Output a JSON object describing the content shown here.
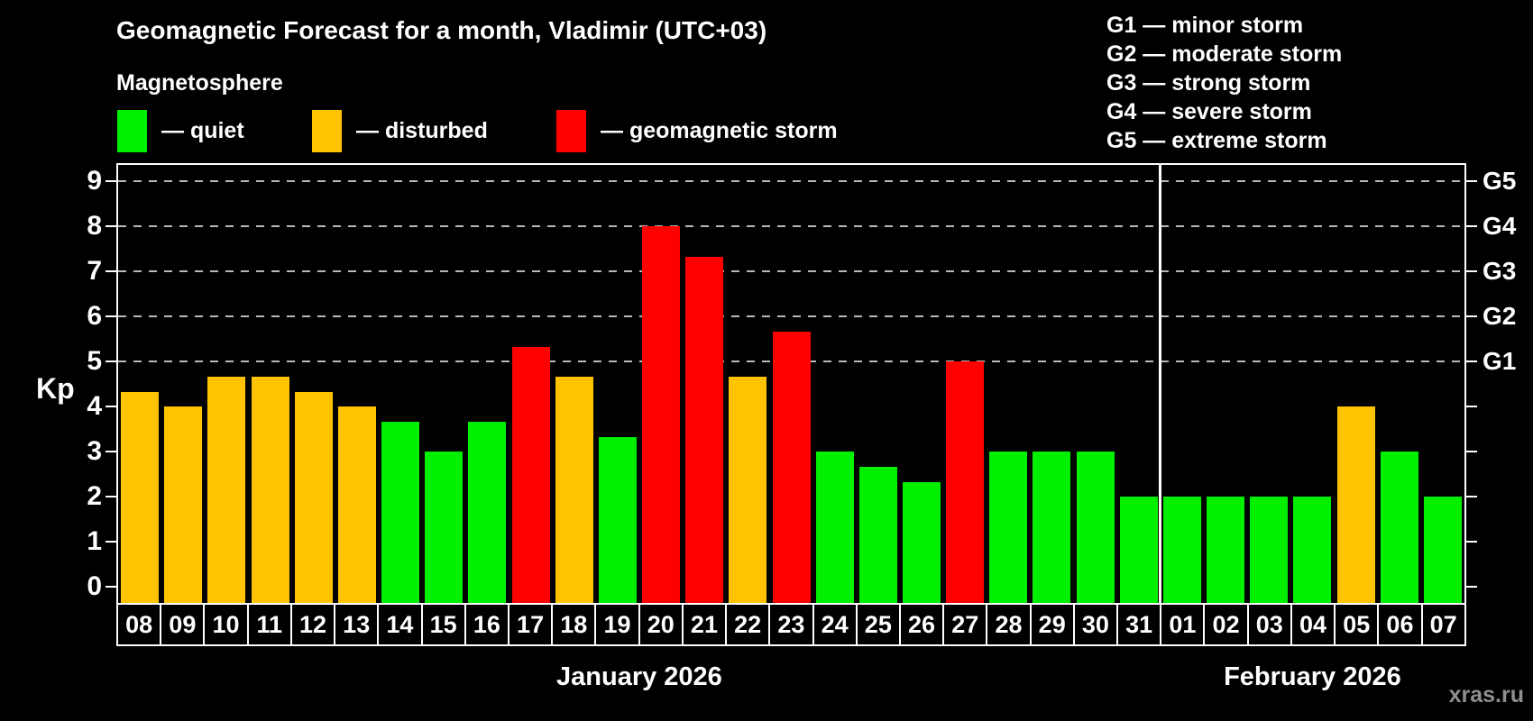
{
  "title": "Geomagnetic Forecast for a month, Vladimir (UTC+03)",
  "subtitle": "Magnetosphere",
  "legend": {
    "items": [
      {
        "key": "quiet",
        "label": "— quiet",
        "color": "#00f000"
      },
      {
        "key": "disturbed",
        "label": "— disturbed",
        "color": "#ffc300"
      },
      {
        "key": "storm",
        "label": "— geomagnetic storm",
        "color": "#ff0000"
      }
    ]
  },
  "g_legend": [
    "G1 — minor storm",
    "G2 — moderate storm",
    "G3 — strong storm",
    "G4 — severe storm",
    "G5 — extreme storm"
  ],
  "watermark": "xras.ru",
  "chart_data": {
    "type": "bar",
    "ylabel": "Kp",
    "ylim": [
      -0.36,
      9.36
    ],
    "yticks": [
      0,
      1,
      2,
      3,
      4,
      5,
      6,
      7,
      8,
      9
    ],
    "gridlines_at": [
      5,
      6,
      7,
      8,
      9
    ],
    "grid": true,
    "legend_position": "top",
    "right_axis_labels": [
      {
        "kp": 5,
        "label": "G1"
      },
      {
        "kp": 6,
        "label": "G2"
      },
      {
        "kp": 7,
        "label": "G3"
      },
      {
        "kp": 8,
        "label": "G4"
      },
      {
        "kp": 9,
        "label": "G5"
      }
    ],
    "months": [
      {
        "label": "January 2026",
        "days": [
          {
            "day": "08",
            "kp": 4.33,
            "status": "disturbed"
          },
          {
            "day": "09",
            "kp": 4.0,
            "status": "disturbed"
          },
          {
            "day": "10",
            "kp": 4.67,
            "status": "disturbed"
          },
          {
            "day": "11",
            "kp": 4.67,
            "status": "disturbed"
          },
          {
            "day": "12",
            "kp": 4.33,
            "status": "disturbed"
          },
          {
            "day": "13",
            "kp": 4.0,
            "status": "disturbed"
          },
          {
            "day": "14",
            "kp": 3.67,
            "status": "quiet"
          },
          {
            "day": "15",
            "kp": 3.0,
            "status": "quiet"
          },
          {
            "day": "16",
            "kp": 3.67,
            "status": "quiet"
          },
          {
            "day": "17",
            "kp": 5.33,
            "status": "storm"
          },
          {
            "day": "18",
            "kp": 4.67,
            "status": "disturbed"
          },
          {
            "day": "19",
            "kp": 3.33,
            "status": "quiet"
          },
          {
            "day": "20",
            "kp": 8.0,
            "status": "storm"
          },
          {
            "day": "21",
            "kp": 7.33,
            "status": "storm"
          },
          {
            "day": "22",
            "kp": 4.67,
            "status": "disturbed"
          },
          {
            "day": "23",
            "kp": 5.67,
            "status": "storm"
          },
          {
            "day": "24",
            "kp": 3.0,
            "status": "quiet"
          },
          {
            "day": "25",
            "kp": 2.67,
            "status": "quiet"
          },
          {
            "day": "26",
            "kp": 2.33,
            "status": "quiet"
          },
          {
            "day": "27",
            "kp": 5.0,
            "status": "storm"
          },
          {
            "day": "28",
            "kp": 3.0,
            "status": "quiet"
          },
          {
            "day": "29",
            "kp": 3.0,
            "status": "quiet"
          },
          {
            "day": "30",
            "kp": 3.0,
            "status": "quiet"
          },
          {
            "day": "31",
            "kp": 2.0,
            "status": "quiet"
          }
        ]
      },
      {
        "label": "February 2026",
        "days": [
          {
            "day": "01",
            "kp": 2.0,
            "status": "quiet"
          },
          {
            "day": "02",
            "kp": 2.0,
            "status": "quiet"
          },
          {
            "day": "03",
            "kp": 2.0,
            "status": "quiet"
          },
          {
            "day": "04",
            "kp": 2.0,
            "status": "quiet"
          },
          {
            "day": "05",
            "kp": 4.0,
            "status": "disturbed"
          },
          {
            "day": "06",
            "kp": 3.0,
            "status": "quiet"
          },
          {
            "day": "07",
            "kp": 2.0,
            "status": "quiet"
          }
        ]
      }
    ]
  }
}
